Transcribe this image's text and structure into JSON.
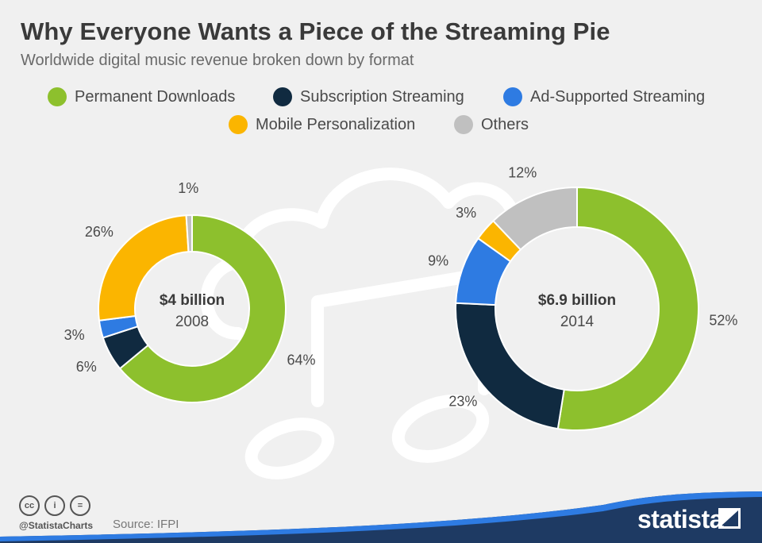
{
  "header": {
    "title": "Why Everyone Wants a Piece of the Streaming Pie",
    "subtitle": "Worldwide digital music revenue broken down by format"
  },
  "legend": [
    {
      "label": "Permanent Downloads",
      "color": "#8dc02d"
    },
    {
      "label": "Subscription Streaming",
      "color": "#102a40"
    },
    {
      "label": "Ad-Supported Streaming",
      "color": "#2e7be2"
    },
    {
      "label": "Mobile Personalization",
      "color": "#fbb500"
    },
    {
      "label": "Others",
      "color": "#c0c0c0"
    }
  ],
  "chart_data": [
    {
      "type": "pie",
      "title": "$4 billion",
      "subtitle": "2008",
      "categories": [
        "Permanent Downloads",
        "Subscription Streaming",
        "Ad-Supported Streaming",
        "Mobile Personalization",
        "Others"
      ],
      "values": [
        64,
        6,
        3,
        26,
        1
      ],
      "labels": [
        "64%",
        "6%",
        "3%",
        "26%",
        "1%"
      ],
      "unit": "%"
    },
    {
      "type": "pie",
      "title": "$6.9 billion",
      "subtitle": "2014",
      "categories": [
        "Permanent Downloads",
        "Subscription Streaming",
        "Ad-Supported Streaming",
        "Mobile Personalization",
        "Others"
      ],
      "values": [
        52,
        23,
        9,
        3,
        12
      ],
      "labels": [
        "52%",
        "23%",
        "9%",
        "3%",
        "12%"
      ],
      "unit": "%"
    }
  ],
  "footer": {
    "cc_icons": [
      "cc",
      "i",
      "="
    ],
    "handle": "@StatistaCharts",
    "source": "Source: IFPI",
    "brand": "statista"
  }
}
